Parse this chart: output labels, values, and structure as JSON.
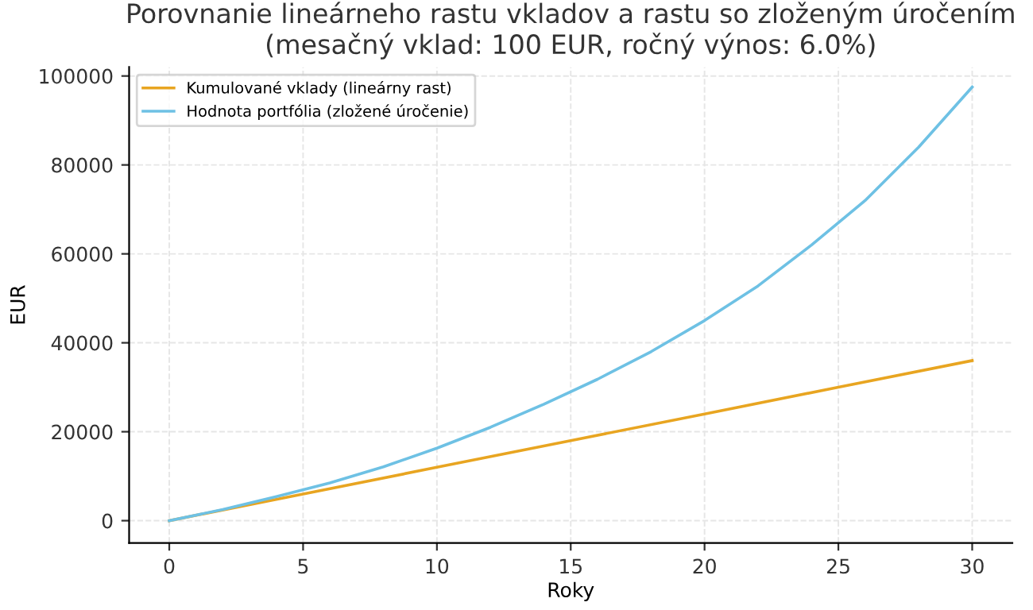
{
  "chart_data": {
    "type": "line",
    "title": "Porovnanie lineárneho rastu vkladov a rastu so zloženým úročením\n(mesačný vklad: 100 EUR, ročný výnos: 6.0%)",
    "xlabel": "Roky",
    "ylabel": "EUR",
    "series": [
      {
        "name": "Kumulované vklady (lineárny rast)",
        "color": "#e8a521",
        "x": [
          0,
          5,
          10,
          15,
          20,
          25,
          30
        ],
        "values": [
          0,
          6000,
          12000,
          18000,
          24000,
          30000,
          36000
        ]
      },
      {
        "name": "Hodnota portfólia (zložené úročenie)",
        "color": "#6ec1e4",
        "x": [
          0,
          2,
          4,
          6,
          8,
          10,
          12,
          14,
          16,
          18,
          20,
          22,
          24,
          26,
          28,
          30
        ],
        "values": [
          0,
          2500,
          5400,
          8500,
          12100,
          16300,
          21000,
          26200,
          31800,
          38000,
          45000,
          52800,
          62000,
          72000,
          84000,
          97500
        ]
      }
    ],
    "xlim": [
      -1.5,
      31.5
    ],
    "ylim": [
      -5000,
      102000
    ],
    "xticks": [
      0,
      5,
      10,
      15,
      20,
      25,
      30
    ],
    "yticks": [
      0,
      20000,
      40000,
      60000,
      80000,
      100000
    ],
    "grid": true,
    "legend": "top left",
    "line_style": "solid",
    "marker": "none"
  }
}
